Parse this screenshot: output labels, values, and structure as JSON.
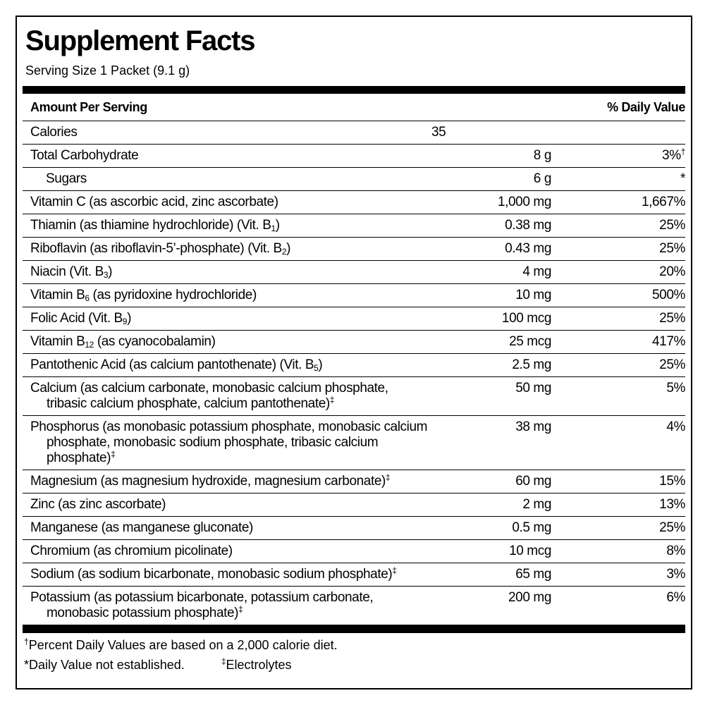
{
  "title": "Supplement Facts",
  "serving_size": "Serving Size 1 Packet (9.1 g)",
  "header": {
    "amount": "Amount Per Serving",
    "daily_value": "% Daily Value"
  },
  "rows": [
    {
      "name": [
        {
          "text": "Calories"
        }
      ],
      "amount": "35"
    },
    {
      "name": [
        {
          "text": "Total Carbohydrate"
        }
      ],
      "amount": "8 g",
      "daily_value": "3%",
      "daily_value_mark": "†"
    },
    {
      "name": [
        {
          "text": "Sugars"
        }
      ],
      "amount": "6 g",
      "daily_value": "*",
      "indented": true
    },
    {
      "name": [
        {
          "text": "Vitamin C (as ascorbic acid, zinc ascorbate)"
        }
      ],
      "amount": "1,000 mg",
      "daily_value": "1,667%"
    },
    {
      "name": [
        {
          "text": "Thiamin (as thiamine hydrochloride) (Vit. B"
        },
        {
          "sub": "1"
        },
        {
          "text": ")"
        }
      ],
      "amount": "0.38 mg",
      "daily_value": "25%"
    },
    {
      "name": [
        {
          "text": "Riboflavin (as riboflavin-5’-phosphate) (Vit. B"
        },
        {
          "sub": "2"
        },
        {
          "text": ")"
        }
      ],
      "amount": "0.43 mg",
      "daily_value": "25%"
    },
    {
      "name": [
        {
          "text": "Niacin (Vit. B"
        },
        {
          "sub": "3"
        },
        {
          "text": ")"
        }
      ],
      "amount": "4 mg",
      "daily_value": "20%"
    },
    {
      "name": [
        {
          "text": "Vitamin B"
        },
        {
          "sub": "6"
        },
        {
          "text": " (as pyridoxine hydrochloride)"
        }
      ],
      "amount": "10 mg",
      "daily_value": "500%"
    },
    {
      "name": [
        {
          "text": "Folic Acid (Vit. B"
        },
        {
          "sub": "9"
        },
        {
          "text": ")"
        }
      ],
      "amount": "100 mcg",
      "daily_value": "25%"
    },
    {
      "name": [
        {
          "text": "Vitamin B"
        },
        {
          "sub": "12"
        },
        {
          "text": " (as cyanocobalamin)"
        }
      ],
      "amount": "25 mcg",
      "daily_value": "417%"
    },
    {
      "name": [
        {
          "text": "Pantothenic Acid (as calcium pantothenate) (Vit. B"
        },
        {
          "sub": "5"
        },
        {
          "text": ")"
        }
      ],
      "amount": "2.5 mg",
      "daily_value": "25%"
    },
    {
      "name": [
        {
          "text": "Calcium (as calcium carbonate, monobasic calcium phosphate, tribasic calcium phosphate, calcium pantothenate)"
        },
        {
          "sup": "‡"
        }
      ],
      "amount": "50 mg",
      "daily_value": "5%"
    },
    {
      "name": [
        {
          "text": "Phosphorus (as monobasic potassium phosphate, monobasic calcium phosphate, monobasic sodium phosphate, tribasic calcium phosphate)"
        },
        {
          "sup": "‡"
        }
      ],
      "amount": "38 mg",
      "daily_value": "4%"
    },
    {
      "name": [
        {
          "text": "Magnesium (as magnesium hydroxide, magnesium carbonate)"
        },
        {
          "sup": "‡"
        }
      ],
      "amount": "60 mg",
      "daily_value": "15%"
    },
    {
      "name": [
        {
          "text": "Zinc (as zinc ascorbate)"
        }
      ],
      "amount": "2 mg",
      "daily_value": "13%"
    },
    {
      "name": [
        {
          "text": "Manganese (as manganese gluconate)"
        }
      ],
      "amount": "0.5 mg",
      "daily_value": "25%"
    },
    {
      "name": [
        {
          "text": "Chromium (as chromium picolinate)"
        }
      ],
      "amount": "10 mcg",
      "daily_value": "8%"
    },
    {
      "name": [
        {
          "text": "Sodium (as sodium bicarbonate, monobasic sodium phosphate)"
        },
        {
          "sup": "‡"
        }
      ],
      "amount": "65 mg",
      "daily_value": "3%"
    },
    {
      "name": [
        {
          "text": "Potassium (as potassium bicarbonate, potassium carbonate, monobasic potassium phosphate)"
        },
        {
          "sup": "‡"
        }
      ],
      "amount": "200 mg",
      "daily_value": "6%"
    }
  ],
  "footnotes": {
    "percent_daily": [
      {
        "sup": "†"
      },
      {
        "text": "Percent Daily Values are based on a 2,000 calorie diet."
      }
    ],
    "not_established": "*Daily Value not established.",
    "electrolytes": [
      {
        "sup": "‡"
      },
      {
        "text": "Electrolytes"
      }
    ]
  }
}
